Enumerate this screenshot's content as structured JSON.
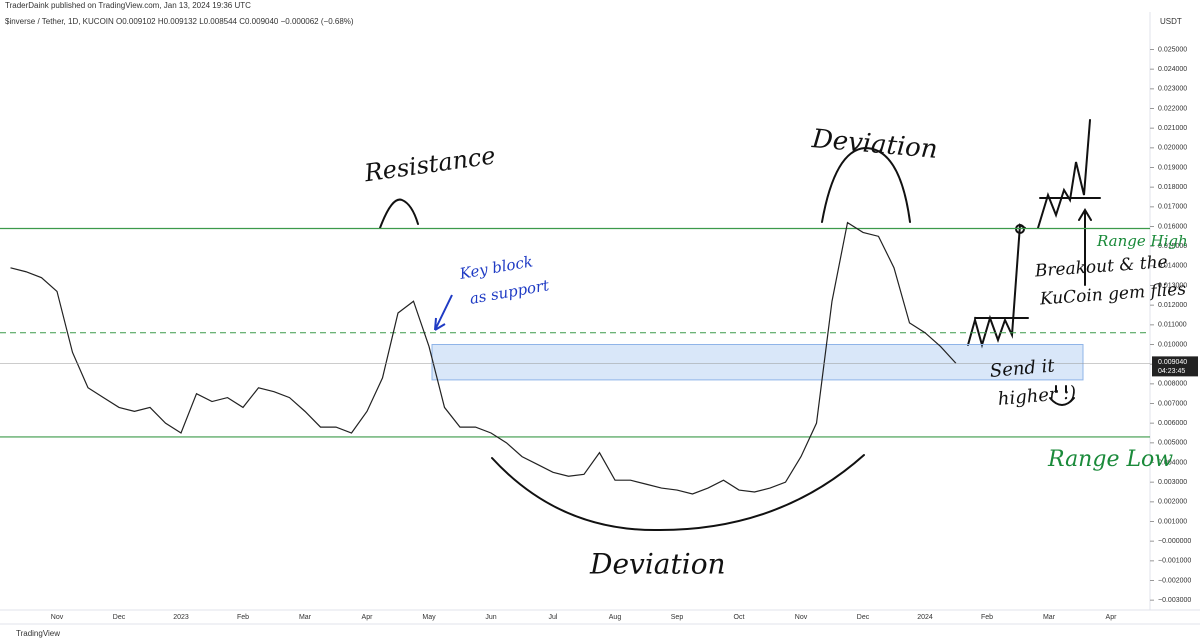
{
  "chart_data": {
    "type": "line",
    "title": "TraderDaink published on TradingView.com, Jan 13, 2024 19:36 UTC",
    "subtitle": "$inverse / Tether, 1D, KUCOIN  O0.009102 H0.009132 L0.008544 C0.009040 −0.000062 (−0.68%)",
    "currency": "USDT",
    "footer": "TradingView",
    "color": "#222222",
    "categories": [
      null,
      null,
      null,
      "Nov",
      null,
      null,
      null,
      "Dec",
      null,
      null,
      null,
      "2023",
      null,
      null,
      null,
      "Feb",
      null,
      null,
      null,
      "Mar",
      null,
      null,
      null,
      "Apr",
      null,
      null,
      null,
      "May",
      null,
      null,
      null,
      "Jun",
      null,
      null,
      null,
      "Jul",
      null,
      null,
      null,
      "Aug",
      null,
      null,
      null,
      "Sep",
      null,
      null,
      null,
      "Oct",
      null,
      null,
      null,
      "Nov",
      null,
      null,
      null,
      "Dec",
      null,
      null,
      null,
      "2024",
      null,
      null,
      null,
      "Feb",
      null,
      null,
      null,
      "Mar",
      null,
      null,
      null,
      "Apr",
      null
    ],
    "values": [
      0.0139,
      0.0137,
      0.0134,
      0.0127,
      0.0096,
      0.0078,
      0.0073,
      0.0068,
      0.0066,
      0.0068,
      0.006,
      0.0055,
      0.0075,
      0.0071,
      0.0073,
      0.0068,
      0.0078,
      0.0076,
      0.0073,
      0.0066,
      0.0058,
      0.0058,
      0.0055,
      0.0066,
      0.0083,
      0.0116,
      0.0122,
      0.0099,
      0.0068,
      0.0058,
      0.0058,
      0.0055,
      0.005,
      0.0043,
      0.0039,
      0.0035,
      0.0033,
      0.0034,
      0.0045,
      0.0031,
      0.0031,
      0.0029,
      0.0027,
      0.0026,
      0.0024,
      0.0027,
      0.0031,
      0.0026,
      0.0025,
      0.0027,
      0.003,
      0.0043,
      0.006,
      0.0122,
      0.0162,
      0.0157,
      0.0155,
      0.0139,
      0.0111,
      0.0106,
      0.0099,
      0.00904,
      null,
      null,
      null,
      null,
      null,
      null,
      null,
      null,
      null,
      null,
      null
    ],
    "last_price": {
      "value": 0.00904,
      "label": "0.009040"
    },
    "countdown": "04:23:45",
    "range_levels": [
      0.0159,
      0.0053
    ],
    "mid_level": 0.0106,
    "support_zone": [
      0.0082,
      0.01
    ],
    "ylim": [
      -0.0035,
      0.0265
    ],
    "yticks": [
      {
        "value": 0.025,
        "label": "0.025000"
      },
      {
        "value": 0.024,
        "label": "0.024000"
      },
      {
        "value": 0.023,
        "label": "0.023000"
      },
      {
        "value": 0.022,
        "label": "0.022000"
      },
      {
        "value": 0.021,
        "label": "0.021000"
      },
      {
        "value": 0.02,
        "label": "0.020000"
      },
      {
        "value": 0.019,
        "label": "0.019000"
      },
      {
        "value": 0.018,
        "label": "0.018000"
      },
      {
        "value": 0.017,
        "label": "0.017000"
      },
      {
        "value": 0.016,
        "label": "0.016000"
      },
      {
        "value": 0.015,
        "label": "0.015000"
      },
      {
        "value": 0.014,
        "label": "0.014000"
      },
      {
        "value": 0.013,
        "label": "0.013000"
      },
      {
        "value": 0.012,
        "label": "0.012000"
      },
      {
        "value": 0.011,
        "label": "0.011000"
      },
      {
        "value": 0.01,
        "label": "0.010000"
      },
      {
        "value": 0.009,
        "label": "0.009000"
      },
      {
        "value": 0.008,
        "label": "0.008000"
      },
      {
        "value": 0.007,
        "label": "0.007000"
      },
      {
        "value": 0.006,
        "label": "0.006000"
      },
      {
        "value": 0.005,
        "label": "0.005000"
      },
      {
        "value": 0.004,
        "label": "0.004000"
      },
      {
        "value": 0.003,
        "label": "0.003000"
      },
      {
        "value": 0.002,
        "label": "0.002000"
      },
      {
        "value": 0.001,
        "label": "0.001000"
      },
      {
        "value": 0,
        "label": "−0.000000"
      },
      {
        "value": -0.001,
        "label": "−0.001000"
      },
      {
        "value": -0.002,
        "label": "−0.002000"
      },
      {
        "value": -0.003,
        "label": "−0.003000"
      }
    ],
    "grid": false,
    "annotations": [
      "Resistance",
      "Deviation",
      "Key block",
      "as support",
      "Range High",
      "Breakout & the",
      "KuCoin gem flies",
      "Send it",
      "higher :)",
      "Range Low",
      "Deviation"
    ]
  }
}
